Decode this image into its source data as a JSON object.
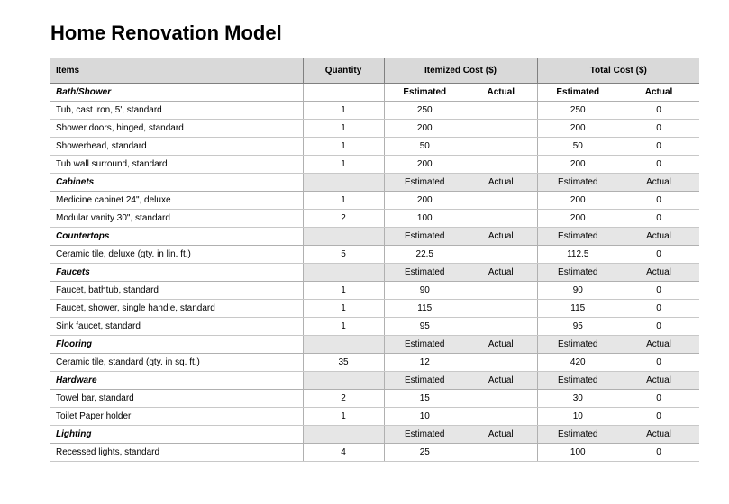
{
  "title": "Home Renovation Model",
  "colors": {
    "header_bg": "#d9d9d9",
    "subhead_bg": "#e6e6e6",
    "border": "#c8c8c8",
    "border_dark": "#808080",
    "text": "#000000"
  },
  "typography": {
    "title_fontsize": 22,
    "cell_fontsize": 10,
    "font_family": "Century Gothic"
  },
  "columns": {
    "items": "Items",
    "quantity": "Quantity",
    "itemized": "Itemized Cost ($)",
    "total": "Total Cost ($)",
    "estimated": "Estimated",
    "actual": "Actual"
  },
  "sections": [
    {
      "name": "Bath/Shower",
      "show_subheads": false,
      "rows": [
        {
          "item": "Tub, cast iron, 5', standard",
          "qty": "1",
          "iest": "250",
          "iact": "",
          "test": "250",
          "tact": "0"
        },
        {
          "item": "Shower doors, hinged, standard",
          "qty": "1",
          "iest": "200",
          "iact": "",
          "test": "200",
          "tact": "0"
        },
        {
          "item": "Showerhead, standard",
          "qty": "1",
          "iest": "50",
          "iact": "",
          "test": "50",
          "tact": "0"
        },
        {
          "item": "Tub wall surround, standard",
          "qty": "1",
          "iest": "200",
          "iact": "",
          "test": "200",
          "tact": "0"
        }
      ]
    },
    {
      "name": "Cabinets",
      "show_subheads": true,
      "rows": [
        {
          "item": "Medicine cabinet 24\", deluxe",
          "qty": "1",
          "iest": "200",
          "iact": "",
          "test": "200",
          "tact": "0"
        },
        {
          "item": "Modular vanity 30\", standard",
          "qty": "2",
          "iest": "100",
          "iact": "",
          "test": "200",
          "tact": "0"
        }
      ]
    },
    {
      "name": "Countertops",
      "show_subheads": true,
      "rows": [
        {
          "item": "Ceramic tile, deluxe (qty. in lin. ft.)",
          "qty": "5",
          "iest": "22.5",
          "iact": "",
          "test": "112.5",
          "tact": "0"
        }
      ]
    },
    {
      "name": "Faucets",
      "show_subheads": true,
      "rows": [
        {
          "item": "Faucet, bathtub, standard",
          "qty": "1",
          "iest": "90",
          "iact": "",
          "test": "90",
          "tact": "0"
        },
        {
          "item": "Faucet, shower, single handle, standard",
          "qty": "1",
          "iest": "115",
          "iact": "",
          "test": "115",
          "tact": "0"
        },
        {
          "item": "Sink faucet, standard",
          "qty": "1",
          "iest": "95",
          "iact": "",
          "test": "95",
          "tact": "0"
        }
      ]
    },
    {
      "name": "Flooring",
      "show_subheads": true,
      "rows": [
        {
          "item": "Ceramic tile, standard (qty. in sq. ft.)",
          "qty": "35",
          "iest": "12",
          "iact": "",
          "test": "420",
          "tact": "0"
        }
      ]
    },
    {
      "name": "Hardware",
      "show_subheads": true,
      "rows": [
        {
          "item": "Towel bar, standard",
          "qty": "2",
          "iest": "15",
          "iact": "",
          "test": "30",
          "tact": "0"
        },
        {
          "item": "Toilet Paper holder",
          "qty": "1",
          "iest": "10",
          "iact": "",
          "test": "10",
          "tact": "0"
        }
      ]
    },
    {
      "name": "Lighting",
      "show_subheads": true,
      "rows": [
        {
          "item": "Recessed lights, standard",
          "qty": "4",
          "iest": "25",
          "iact": "",
          "test": "100",
          "tact": "0"
        }
      ]
    }
  ]
}
